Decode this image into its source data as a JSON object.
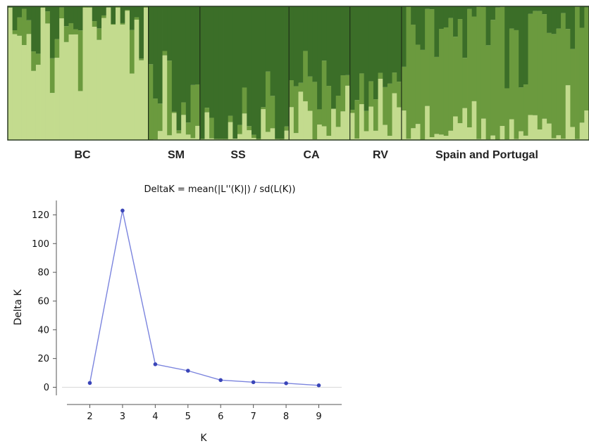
{
  "chart_data": [
    {
      "type": "bar",
      "variant": "stacked-100-percent-admixture",
      "populations": [
        "BC",
        "SM",
        "SS",
        "CA",
        "RV",
        "Spain and Portugal"
      ],
      "population_sizes": [
        30,
        11,
        19,
        13,
        11,
        40
      ],
      "series_colors": [
        "#c3db8e",
        "#6b9a3e",
        "#3b6e28"
      ],
      "ylim": [
        0,
        1
      ]
    },
    {
      "type": "line",
      "title": "DeltaK = mean(|L''(K)|) / sd(L(K))",
      "xlabel": "K",
      "ylabel": "Delta K",
      "x": [
        2,
        3,
        4,
        5,
        6,
        7,
        8,
        9
      ],
      "series": [
        {
          "values": [
            3,
            123,
            16,
            11.5,
            5,
            3.5,
            2.8,
            1.3
          ]
        }
      ],
      "xticks": [
        "2",
        "3",
        "4",
        "5",
        "6",
        "7",
        "8",
        "9"
      ],
      "yticks": [
        "0",
        "20",
        "40",
        "60",
        "80",
        "100",
        "120"
      ],
      "xlim": [
        1.3,
        9.7
      ],
      "ylim": [
        -12,
        130
      ],
      "line_color": "#7b84de",
      "marker_color": "#3a45b8",
      "grid": false
    }
  ]
}
